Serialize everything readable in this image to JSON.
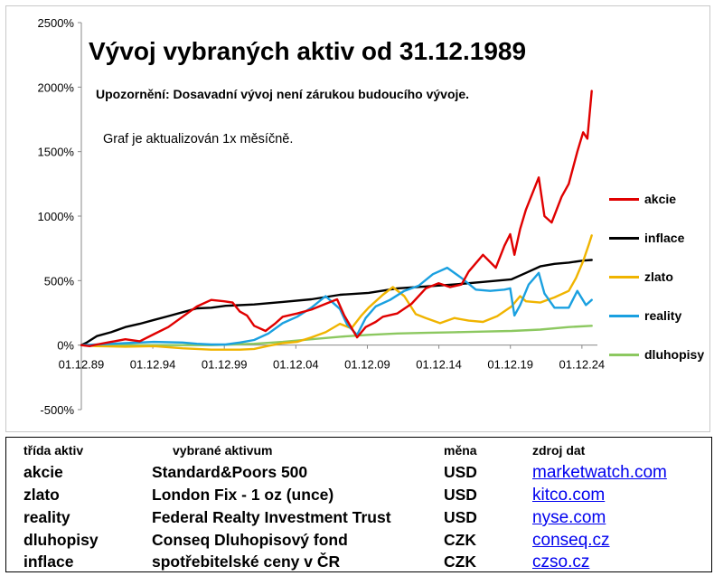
{
  "chart": {
    "title": "Vývoj vybraných aktiv od 31.12.1989",
    "warning": "Upozornění: Dosavadní vývoj není zárukou budoucího vývoje.",
    "note": "Graf je aktualizován 1x měsíčně."
  },
  "chart_data": {
    "type": "line",
    "title": "Vývoj vybraných aktiv od 31.12.1989",
    "xlabel": "",
    "ylabel": "",
    "x_ticks": [
      "01.12.89",
      "01.12.94",
      "01.12.99",
      "01.12.04",
      "01.12.09",
      "01.12.14",
      "01.12.19",
      "01.12.24"
    ],
    "y_ticks": [
      "-500%",
      "0%",
      "500%",
      "1000%",
      "1500%",
      "2000%",
      "2500%"
    ],
    "ylim": [
      -500,
      2500
    ],
    "xlim": [
      1989.92,
      2026
    ],
    "grid": false,
    "legend_position": "right",
    "series": [
      {
        "name": "akcie",
        "color": "#e00000",
        "x": [
          1989.92,
          1990.5,
          1991,
          1992,
          1993,
          1994,
          1995,
          1996,
          1997,
          1998,
          1999,
          1999.9,
          2000.5,
          2001,
          2001.5,
          2002,
          2002.8,
          2003.5,
          2004,
          2005,
          2006,
          2007,
          2007.8,
          2008.3,
          2009.2,
          2009.8,
          2010.5,
          2011,
          2012,
          2013,
          2014,
          2014.9,
          2015.7,
          2016.5,
          2017,
          2018,
          2018.9,
          2019.5,
          2019.9,
          2020.2,
          2020.6,
          2021,
          2021.9,
          2022.3,
          2022.8,
          2023.5,
          2024,
          2024.6,
          2025,
          2025.3,
          2025.6
        ],
        "y": [
          0,
          -8,
          5,
          25,
          45,
          30,
          85,
          140,
          220,
          300,
          350,
          340,
          330,
          260,
          230,
          150,
          110,
          170,
          220,
          245,
          275,
          320,
          355,
          230,
          60,
          140,
          180,
          220,
          245,
          320,
          440,
          480,
          450,
          470,
          570,
          700,
          600,
          770,
          860,
          700,
          900,
          1050,
          1300,
          1000,
          950,
          1150,
          1250,
          1500,
          1650,
          1600,
          1970
        ]
      },
      {
        "name": "inflace",
        "color": "#000000",
        "x": [
          1989.92,
          1990.3,
          1991,
          1992,
          1993,
          1994,
          1995,
          1996,
          1997,
          1998,
          1999,
          2000,
          2002,
          2004,
          2006,
          2008,
          2010,
          2012,
          2014,
          2016,
          2018,
          2020,
          2021,
          2022,
          2023,
          2024,
          2025,
          2025.6
        ],
        "y": [
          0,
          20,
          70,
          100,
          140,
          165,
          195,
          225,
          255,
          285,
          290,
          305,
          315,
          335,
          355,
          390,
          405,
          440,
          455,
          470,
          490,
          510,
          560,
          610,
          630,
          640,
          655,
          660
        ]
      },
      {
        "name": "zlato",
        "color": "#f0b400",
        "x": [
          1989.92,
          1991,
          1993,
          1995,
          1997,
          1999,
          2001,
          2002,
          2003,
          2004,
          2005,
          2006,
          2007,
          2008,
          2008.8,
          2009.5,
          2010,
          2011,
          2011.7,
          2012.5,
          2013.3,
          2014,
          2015,
          2016,
          2017,
          2018,
          2019,
          2020,
          2020.6,
          2021,
          2022,
          2023,
          2024,
          2024.5,
          2025,
          2025.4,
          2025.6
        ],
        "y": [
          0,
          -8,
          -12,
          -8,
          -25,
          -35,
          -35,
          -30,
          -5,
          15,
          25,
          60,
          100,
          165,
          130,
          230,
          290,
          390,
          450,
          380,
          240,
          210,
          170,
          210,
          190,
          180,
          225,
          300,
          380,
          340,
          330,
          370,
          420,
          520,
          650,
          780,
          850
        ]
      },
      {
        "name": "reality",
        "color": "#1aa0e0",
        "x": [
          1989.92,
          1991,
          1993,
          1995,
          1997,
          1998,
          1999,
          2000,
          2001,
          2002,
          2003,
          2004,
          2005,
          2006,
          2007,
          2007.4,
          2008,
          2008.5,
          2009.2,
          2009.8,
          2010.5,
          2011.5,
          2012.5,
          2013.5,
          2014.5,
          2015.5,
          2016.5,
          2017.5,
          2018.5,
          2019.5,
          2019.9,
          2020.2,
          2020.6,
          2021.2,
          2021.9,
          2022.3,
          2023,
          2024,
          2024.6,
          2025.2,
          2025.6
        ],
        "y": [
          0,
          5,
          15,
          25,
          20,
          10,
          5,
          5,
          20,
          40,
          90,
          170,
          220,
          290,
          380,
          340,
          280,
          160,
          80,
          210,
          300,
          350,
          420,
          460,
          550,
          600,
          520,
          430,
          420,
          430,
          440,
          230,
          310,
          470,
          560,
          400,
          290,
          290,
          420,
          310,
          350
        ]
      },
      {
        "name": "dluhopisy",
        "color": "#8cc860",
        "x": [
          1989.92,
          1993,
          1996,
          1999,
          2002,
          2004,
          2006,
          2008,
          2010,
          2012,
          2014,
          2016,
          2018,
          2020,
          2022,
          2024,
          2025.6
        ],
        "y": [
          0,
          0,
          0,
          0,
          10,
          25,
          45,
          65,
          80,
          90,
          95,
          100,
          105,
          110,
          120,
          140,
          150
        ]
      }
    ]
  },
  "table": {
    "headers": [
      "třída aktiv",
      "vybrané aktivum",
      "měna",
      "zdroj dat"
    ],
    "rows": [
      [
        "akcie",
        "Standard&Poors 500",
        "USD",
        "marketwatch.com"
      ],
      [
        "zlato",
        "London Fix - 1 oz (unce)",
        "USD",
        "kitco.com"
      ],
      [
        "reality",
        "Federal Realty Investment Trust",
        "USD",
        "nyse.com"
      ],
      [
        "dluhopisy",
        "Conseq Dluhopisový fond",
        "CZK",
        "conseq.cz"
      ],
      [
        "inflace",
        "spotřebitelské ceny v ČR",
        "CZK",
        "czso.cz"
      ]
    ]
  }
}
